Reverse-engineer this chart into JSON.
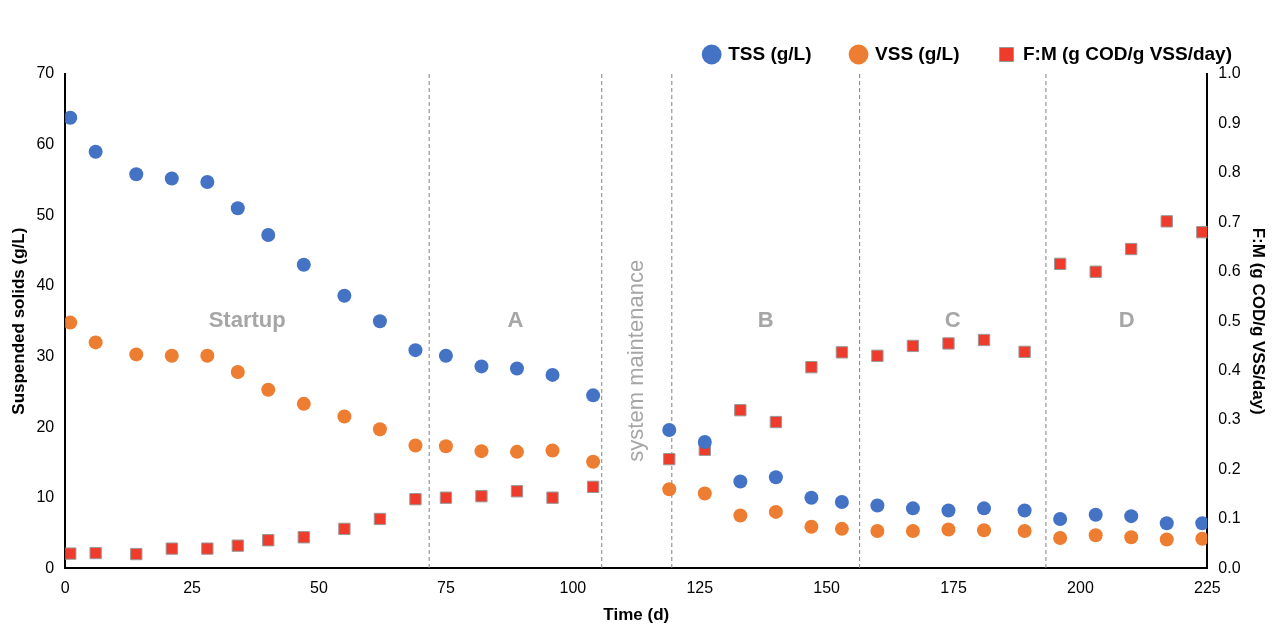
{
  "chart_data": {
    "type": "scatter",
    "xlabel": "Time (d)",
    "ylabel": "Suspended solids (g/L)",
    "y2label": "F:M (g COD/g VSS/day)",
    "x": [
      1,
      6,
      14,
      21,
      28,
      34,
      40,
      47,
      55,
      62,
      69,
      75,
      82,
      89,
      96,
      104,
      119,
      126,
      133,
      140,
      147,
      153,
      160,
      167,
      174,
      181,
      189,
      196,
      203,
      210,
      217,
      224
    ],
    "series": [
      {
        "name": "TSS (g/L)",
        "color": "#4472c4",
        "marker": "circle",
        "values": [
          63.8,
          59,
          55.8,
          55.2,
          54.7,
          51,
          47.2,
          43,
          38.6,
          35,
          30.9,
          30.1,
          28.6,
          28.3,
          27.4,
          24.5,
          19.6,
          17.9,
          12.3,
          12.9,
          10.0,
          9.4,
          8.9,
          8.5,
          8.2,
          8.5,
          8.2,
          7.0,
          7.6,
          7.4,
          6.4,
          6.4
        ]
      },
      {
        "name": "VSS (g/L)",
        "color": "#ed7d31",
        "marker": "circle",
        "values": [
          34.8,
          32,
          30.3,
          30.1,
          30.1,
          27.8,
          25.3,
          23.3,
          21.5,
          19.7,
          17.4,
          17.3,
          16.6,
          16.5,
          16.7,
          15.1,
          11.2,
          10.6,
          7.5,
          8.0,
          5.9,
          5.6,
          5.3,
          5.3,
          5.5,
          5.4,
          5.3,
          4.3,
          4.7,
          4.4,
          4.1,
          4.2
        ]
      },
      {
        "name": "F:M (g COD/g VSS/day)",
        "color": "#ee3b2b",
        "marker": "square",
        "axis": "y2",
        "values": [
          0.03,
          0.031,
          0.029,
          0.04,
          0.04,
          0.046,
          0.057,
          0.063,
          0.08,
          0.1,
          0.14,
          0.143,
          0.146,
          0.156,
          0.143,
          0.165,
          0.221,
          0.24,
          0.32,
          0.296,
          0.407,
          0.437,
          0.43,
          0.45,
          0.455,
          0.462,
          0.438,
          0.616,
          0.6,
          0.646,
          0.702,
          0.68
        ]
      }
    ],
    "xlim": [
      0,
      225
    ],
    "xticks": [
      0,
      25,
      50,
      75,
      100,
      125,
      150,
      175,
      200,
      225
    ],
    "ylim": [
      0,
      70
    ],
    "yticks": [
      0,
      10,
      20,
      30,
      40,
      50,
      60,
      70
    ],
    "y2lim": [
      0,
      1
    ],
    "y2ticks": [
      {
        "value": 0,
        "label": "0.0"
      },
      {
        "value": 0.1,
        "label": "0.1"
      },
      {
        "value": 0.2,
        "label": "0.2"
      },
      {
        "value": 0.3,
        "label": "0.3"
      },
      {
        "value": 0.4,
        "label": "0.4"
      },
      {
        "value": 0.5,
        "label": "0.5"
      },
      {
        "value": 0.6,
        "label": "0.6"
      },
      {
        "value": 0.7,
        "label": "0.7"
      },
      {
        "value": 0.8,
        "label": "0.8"
      },
      {
        "value": 0.9,
        "label": "0.9"
      },
      {
        "value": 1,
        "label": "1.0"
      }
    ],
    "ref_lines": [
      {
        "axis": "x",
        "value": 71.7,
        "color": "#808080",
        "line_style": "dashed"
      },
      {
        "axis": "x",
        "value": 105.7,
        "color": "#808080",
        "line_style": "dashed"
      },
      {
        "axis": "x",
        "value": 119.5,
        "color": "#808080",
        "line_style": "dashed"
      },
      {
        "axis": "x",
        "value": 156.5,
        "color": "#808080",
        "line_style": "dashed"
      },
      {
        "axis": "x",
        "value": 193.2,
        "color": "#808080",
        "line_style": "dashed"
      }
    ],
    "annotations": [
      "Startup",
      "A",
      "system maintenance",
      "B",
      "C",
      "D"
    ],
    "grid": false,
    "legend": "top"
  }
}
